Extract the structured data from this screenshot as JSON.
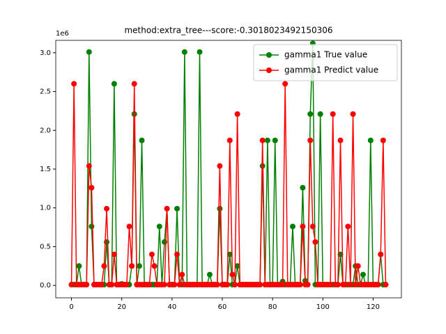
{
  "chart_data": {
    "type": "line",
    "title": "method:extra_tree---score:-0.3018023492150306",
    "y_offset_label": "1e6",
    "x": [
      0,
      1,
      2,
      3,
      4,
      5,
      6,
      7,
      8,
      9,
      10,
      11,
      12,
      13,
      14,
      15,
      16,
      17,
      18,
      19,
      20,
      21,
      22,
      23,
      24,
      25,
      26,
      27,
      28,
      29,
      30,
      31,
      32,
      33,
      34,
      35,
      36,
      37,
      38,
      39,
      40,
      41,
      42,
      43,
      44,
      45,
      46,
      47,
      48,
      49,
      50,
      51,
      52,
      53,
      54,
      55,
      56,
      57,
      58,
      59,
      60,
      61,
      62,
      63,
      64,
      65,
      66,
      67,
      68,
      69,
      70,
      71,
      72,
      73,
      74,
      75,
      76,
      77,
      78,
      79,
      80,
      81,
      82,
      83,
      84,
      85,
      86,
      87,
      88,
      89,
      90,
      91,
      92,
      93,
      94,
      95,
      96,
      97,
      98,
      99,
      100,
      101,
      102,
      103,
      104,
      105,
      106,
      107,
      108,
      109,
      110,
      111,
      112,
      113,
      114,
      115,
      116,
      117,
      118,
      119,
      120,
      121,
      122,
      123,
      124,
      125
    ],
    "series": [
      {
        "name": "gamma1 True value",
        "color": "#008000",
        "values": [
          0.01,
          0.01,
          0.01,
          0.25,
          0.01,
          0.01,
          0.01,
          3.01,
          0.76,
          0.01,
          0.01,
          0.01,
          0.01,
          0.01,
          0.56,
          0.01,
          0.01,
          2.6,
          0.01,
          0.01,
          0.02,
          0.01,
          0.01,
          0.01,
          0.25,
          2.21,
          0.01,
          0.25,
          1.87,
          0.01,
          0.01,
          0.01,
          0.01,
          0.01,
          0.01,
          0.76,
          0.01,
          0.56,
          0.99,
          0.01,
          0.01,
          0.01,
          0.99,
          0.01,
          0.01,
          3.01,
          0.01,
          0.01,
          0.01,
          0.01,
          0.01,
          3.01,
          0.01,
          0.01,
          0.01,
          0.14,
          0.01,
          0.01,
          0.01,
          0.99,
          0.01,
          0.01,
          0.01,
          0.4,
          0.01,
          0.01,
          0.25,
          0.01,
          0.01,
          0.01,
          0.01,
          0.01,
          0.01,
          0.01,
          0.01,
          0.01,
          1.54,
          0.01,
          1.87,
          0.01,
          0.01,
          1.87,
          0.01,
          0.01,
          0.05,
          0.01,
          0.01,
          0.01,
          0.76,
          0.01,
          0.01,
          0.01,
          1.26,
          0.06,
          0.01,
          2.21,
          3.12,
          0.01,
          0.01,
          2.21,
          0.01,
          0.01,
          0.01,
          0.01,
          0.01,
          0.01,
          0.01,
          0.4,
          0.01,
          0.01,
          0.01,
          0.01,
          0.01,
          0.25,
          0.01,
          0.01,
          0.14,
          0.01,
          0.01,
          1.87,
          0.01,
          0.01,
          0.01,
          0.4,
          0.01,
          0.01
        ]
      },
      {
        "name": "gamma1 Predict value",
        "color": "#ff0000",
        "values": [
          0.01,
          2.6,
          0.01,
          0.01,
          0.01,
          0.01,
          0.01,
          1.54,
          1.26,
          0.01,
          0.01,
          0.01,
          0.01,
          0.25,
          0.99,
          0.01,
          0.01,
          0.4,
          0.01,
          0.01,
          0.01,
          0.01,
          0.01,
          0.76,
          0.25,
          2.6,
          0.01,
          0.01,
          0.01,
          0.01,
          0.01,
          0.01,
          0.4,
          0.25,
          0.01,
          0.01,
          0.01,
          0.01,
          0.99,
          0.01,
          0.01,
          0.01,
          0.4,
          0.01,
          0.14,
          0.01,
          0.01,
          0.01,
          0.01,
          0.01,
          0.01,
          0.01,
          0.01,
          0.01,
          0.01,
          0.01,
          0.01,
          0.01,
          0.01,
          1.54,
          0.01,
          0.01,
          0.01,
          1.87,
          0.14,
          0.01,
          2.21,
          0.01,
          0.01,
          0.01,
          0.01,
          0.01,
          0.01,
          0.01,
          0.01,
          0.01,
          1.87,
          0.01,
          0.01,
          0.01,
          0.01,
          0.01,
          0.01,
          0.01,
          0.01,
          2.6,
          0.01,
          0.01,
          0.01,
          0.01,
          0.01,
          0.01,
          0.76,
          0.01,
          0.01,
          1.87,
          0.76,
          0.56,
          0.01,
          0.01,
          0.01,
          0.01,
          0.01,
          0.01,
          2.21,
          0.01,
          0.01,
          1.87,
          0.01,
          0.01,
          0.76,
          0.01,
          2.21,
          0.01,
          0.25,
          0.01,
          0.01,
          0.01,
          0.01,
          0.01,
          0.01,
          0.01,
          0.01,
          0.4,
          1.87,
          0.01
        ]
      }
    ],
    "xlim": [
      -6.25,
      131.25
    ],
    "ylim": [
      -0.16,
      3.16
    ],
    "xticks": [
      0,
      20,
      40,
      60,
      80,
      100,
      120
    ],
    "yticks": [
      {
        "value": 0,
        "label": "0.0"
      },
      {
        "value": 0.5,
        "label": "0.5"
      },
      {
        "value": 1,
        "label": "1.0"
      },
      {
        "value": 1.5,
        "label": "1.5"
      },
      {
        "value": 2,
        "label": "2.0"
      },
      {
        "value": 2.5,
        "label": "2.5"
      },
      {
        "value": 3,
        "label": "3.0"
      }
    ],
    "legend": "upper right",
    "grid": false
  }
}
